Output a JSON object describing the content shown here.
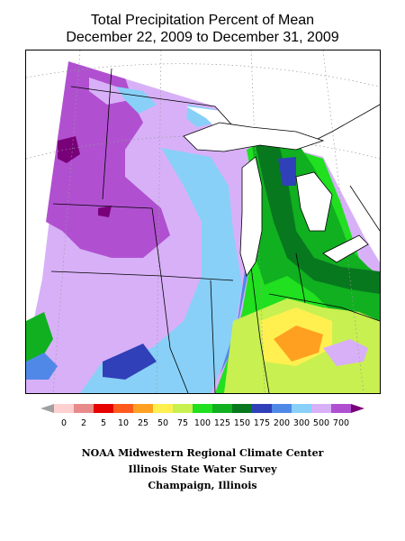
{
  "title": {
    "line1": "Total Precipitation Percent of Mean",
    "line2": "December 22, 2009 to December 31, 2009"
  },
  "legend": {
    "bins": [
      {
        "label": "0",
        "color": "#ffd0d0"
      },
      {
        "label": "2",
        "color": "#e88a8a"
      },
      {
        "label": "5",
        "color": "#e60000"
      },
      {
        "label": "10",
        "color": "#ff5a1e"
      },
      {
        "label": "25",
        "color": "#ffa020"
      },
      {
        "label": "50",
        "color": "#fff050"
      },
      {
        "label": "75",
        "color": "#c8f050"
      },
      {
        "label": "100",
        "color": "#20e020"
      },
      {
        "label": "125",
        "color": "#10b020"
      },
      {
        "label": "150",
        "color": "#08781e"
      },
      {
        "label": "175",
        "color": "#3040b8"
      },
      {
        "label": "200",
        "color": "#5088e8"
      },
      {
        "label": "300",
        "color": "#88d0f8"
      },
      {
        "label": "500",
        "color": "#d8b0f8"
      },
      {
        "label": "700",
        "color": "#b050d0"
      }
    ],
    "low_arrow_color": "#a0a0a0",
    "high_arrow_color": "#780078"
  },
  "credits": {
    "line1": "NOAA Midwestern Regional Climate Center",
    "line2": "Illinois State Water Survey",
    "line3": "Champaign, Illinois"
  }
}
